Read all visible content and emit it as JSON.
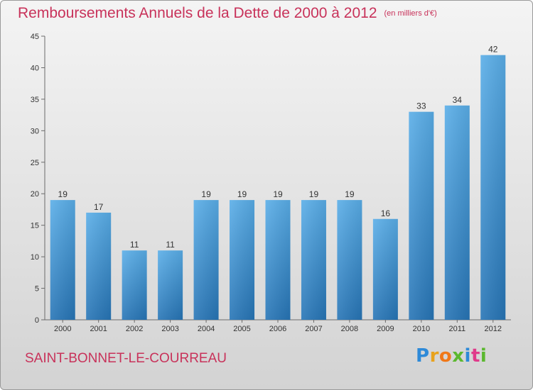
{
  "title": "Remboursements Annuels de la Dette de 2000 à 2012",
  "unit": "(en milliers d'€)",
  "commune": "SAINT-BONNET-LE-COURREAU",
  "brand": {
    "letters": [
      "P",
      "r",
      "o",
      "x",
      "i",
      "t",
      "i"
    ],
    "colors": [
      "#2e8ad8",
      "#e8a21c",
      "#f07818",
      "#5bb82f",
      "#2e8ad8",
      "#e03a8a",
      "#5bb82f"
    ]
  },
  "colors": {
    "bar": "#3d95d8",
    "accent": "#c8325a"
  },
  "chart_data": {
    "type": "bar",
    "title": "Remboursements Annuels de la Dette de 2000 à 2012",
    "unit": "(en milliers d'€)",
    "categories": [
      "2000",
      "2001",
      "2002",
      "2003",
      "2004",
      "2005",
      "2006",
      "2007",
      "2008",
      "2009",
      "2010",
      "2011",
      "2012"
    ],
    "values": [
      19,
      17,
      11,
      11,
      19,
      19,
      19,
      19,
      19,
      16,
      33,
      34,
      42
    ],
    "ylim": [
      0,
      45
    ],
    "yticks": [
      0,
      5,
      10,
      15,
      20,
      25,
      30,
      35,
      40,
      45
    ],
    "grid": false,
    "legend": "none"
  }
}
